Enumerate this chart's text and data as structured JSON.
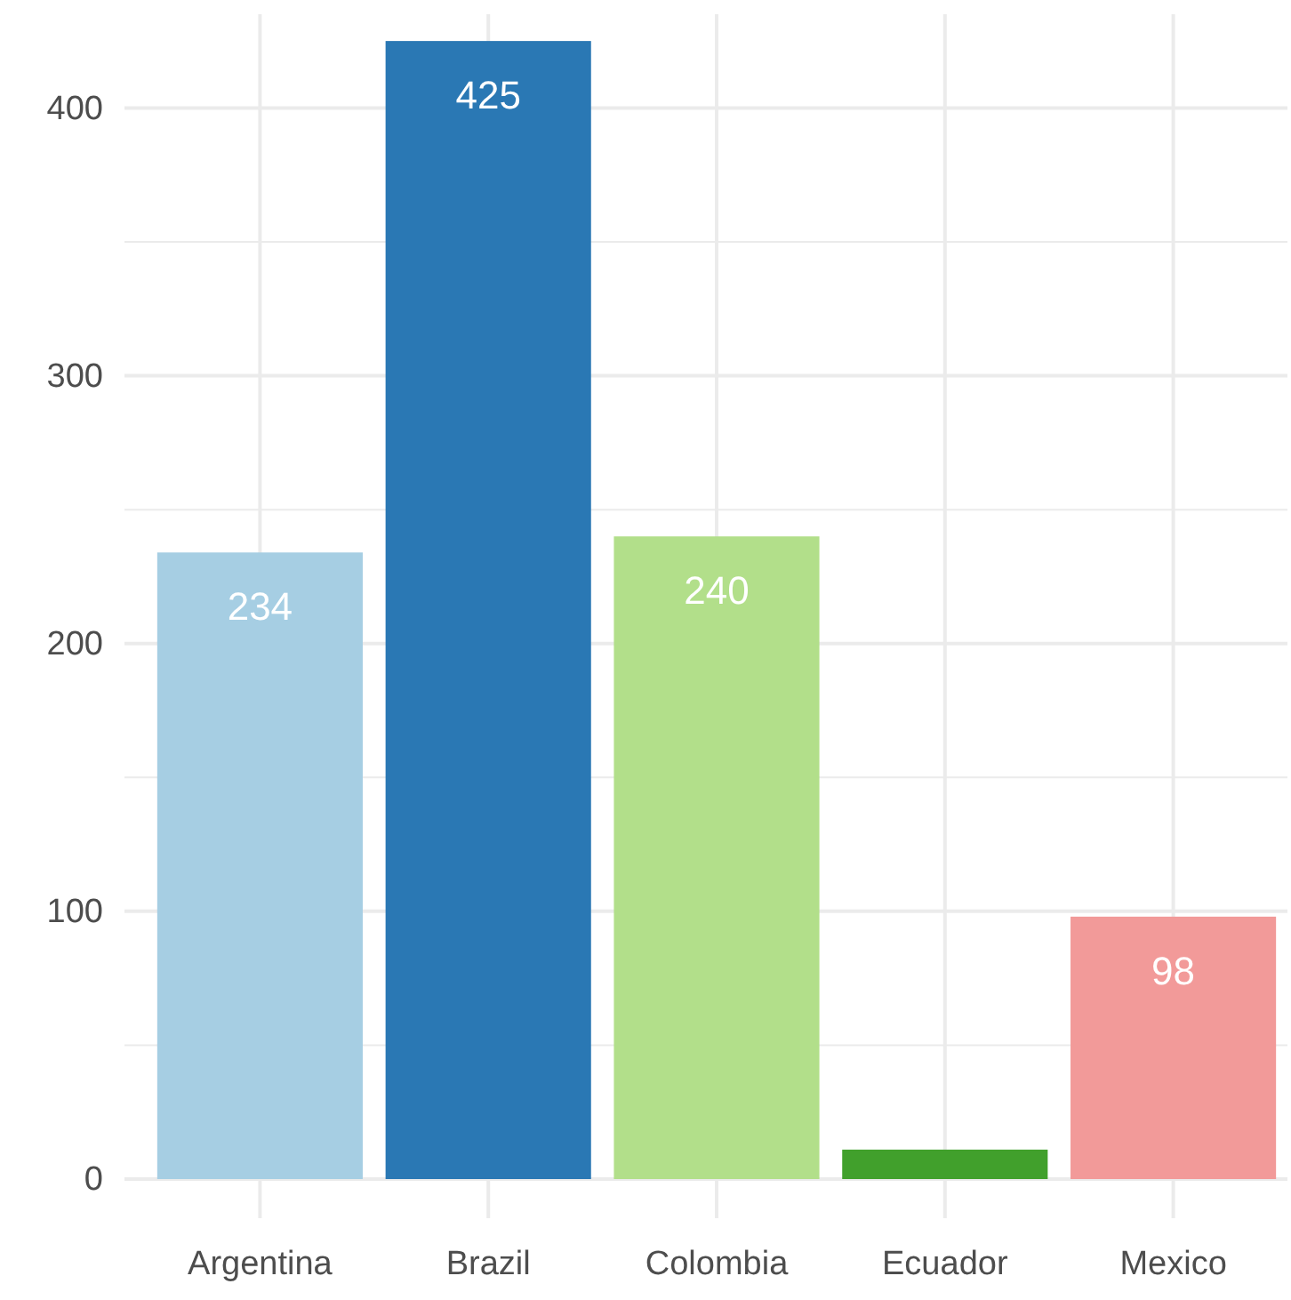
{
  "chart_data": {
    "type": "bar",
    "categories": [
      "Argentina",
      "Brazil",
      "Colombia",
      "Ecuador",
      "Mexico"
    ],
    "values": [
      234,
      425,
      240,
      11,
      98
    ],
    "colors": [
      "#a6cee3",
      "#2a78b4",
      "#b2df8a",
      "#41a02c",
      "#f29a99"
    ],
    "value_labels": [
      "234",
      "425",
      "240",
      null,
      "98"
    ],
    "ylim": [
      0,
      435
    ],
    "yticks": [
      0,
      {
        "value": 50,
        "label": null
      },
      100,
      {
        "value": 150,
        "label": null
      },
      200,
      {
        "value": 250,
        "label": null
      },
      300,
      {
        "value": 350,
        "label": null
      },
      400
    ],
    "grid": true
  }
}
